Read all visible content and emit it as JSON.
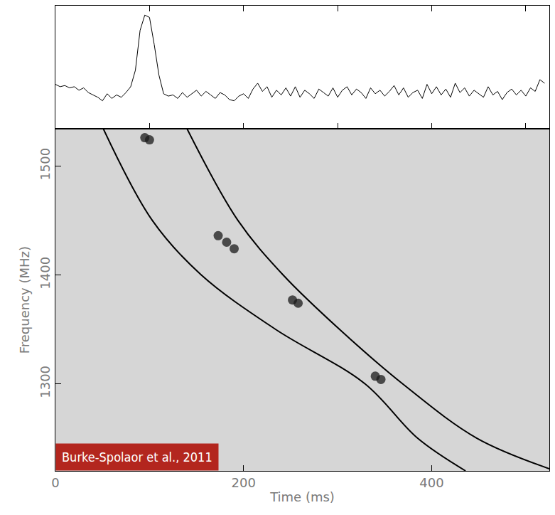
{
  "chart_data": [
    {
      "type": "line",
      "x": [
        0,
        5,
        10,
        15,
        20,
        25,
        30,
        35,
        40,
        45,
        50,
        55,
        60,
        65,
        70,
        75,
        80,
        85,
        90,
        95,
        100,
        105,
        110,
        115,
        120,
        125,
        130,
        135,
        140,
        145,
        150,
        155,
        160,
        165,
        170,
        175,
        180,
        185,
        190,
        195,
        200,
        205,
        210,
        215,
        220,
        225,
        230,
        235,
        240,
        245,
        250,
        255,
        260,
        265,
        270,
        275,
        280,
        285,
        290,
        295,
        300,
        305,
        310,
        315,
        320,
        325,
        330,
        335,
        340,
        345,
        350,
        355,
        360,
        365,
        370,
        375,
        380,
        385,
        390,
        395,
        400,
        405,
        410,
        415,
        420,
        425,
        430,
        435,
        440,
        445,
        450,
        455,
        460,
        465,
        470,
        475,
        480,
        485,
        490,
        495,
        500,
        505,
        510,
        515,
        520
      ],
      "values": [
        3.8,
        3.6,
        3.7,
        3.5,
        3.6,
        3.3,
        3.5,
        3.1,
        2.9,
        2.7,
        2.4,
        3.0,
        2.6,
        2.9,
        2.7,
        3.1,
        3.6,
        5.0,
        8.4,
        9.7,
        9.5,
        7.2,
        4.6,
        3.0,
        2.8,
        2.9,
        2.6,
        3.1,
        2.7,
        3.0,
        3.3,
        2.8,
        3.2,
        2.9,
        2.6,
        3.1,
        2.9,
        2.5,
        2.4,
        2.8,
        3.0,
        2.6,
        3.4,
        3.9,
        3.2,
        3.6,
        2.7,
        3.3,
        2.9,
        3.5,
        2.8,
        3.6,
        2.7,
        3.3,
        3.0,
        2.6,
        3.4,
        3.1,
        2.8,
        3.5,
        2.7,
        3.3,
        3.6,
        2.9,
        3.4,
        3.1,
        2.6,
        3.5,
        3.0,
        3.3,
        2.8,
        3.2,
        3.7,
        2.9,
        3.5,
        2.7,
        3.1,
        3.3,
        2.6,
        3.8,
        3.0,
        3.6,
        2.9,
        3.4,
        2.7,
        3.9,
        3.1,
        3.5,
        2.8,
        3.3,
        3.0,
        2.7,
        3.6,
        2.9,
        3.2,
        2.5,
        3.1,
        3.4,
        2.9,
        3.3,
        2.8,
        3.5,
        3.2,
        4.2,
        3.9
      ],
      "color": "#000000",
      "xlim": [
        0,
        525
      ],
      "xticks": [
        0,
        100,
        200,
        300,
        400,
        500
      ],
      "ylim": [
        0,
        10.5
      ],
      "tick_labels": false
    },
    {
      "type": "scatter",
      "x_label": "Time (ms)",
      "y_label": "Frequency (MHz)",
      "xlim": [
        0,
        525
      ],
      "ylim": [
        1220,
        1534
      ],
      "xticks": [
        0,
        200,
        400
      ],
      "yticks": [
        1300,
        1400,
        1500
      ],
      "series": [
        {
          "type": "scatter",
          "marker": "circle",
          "color": "#1a1a1a",
          "x": [
            95,
            100,
            173,
            182,
            190,
            252,
            258,
            340,
            346
          ],
          "values": [
            1526,
            1524,
            1436,
            1430,
            1424,
            1377,
            1374,
            1307,
            1304
          ]
        },
        {
          "type": "line",
          "color": "#000000",
          "x": [
            51,
            103,
            155,
            234,
            329,
            385,
            436
          ],
          "values": [
            1534,
            1450,
            1400,
            1350,
            1300,
            1250,
            1220
          ]
        },
        {
          "type": "line",
          "color": "#000000",
          "x": [
            140,
            194,
            242,
            302,
            369,
            448,
            525
          ],
          "values": [
            1534,
            1450,
            1400,
            1350,
            1300,
            1250,
            1222
          ]
        }
      ],
      "annotation": {
        "text": "Burke-Spolaor et al., 2011",
        "color": "#b3261e"
      }
    }
  ]
}
